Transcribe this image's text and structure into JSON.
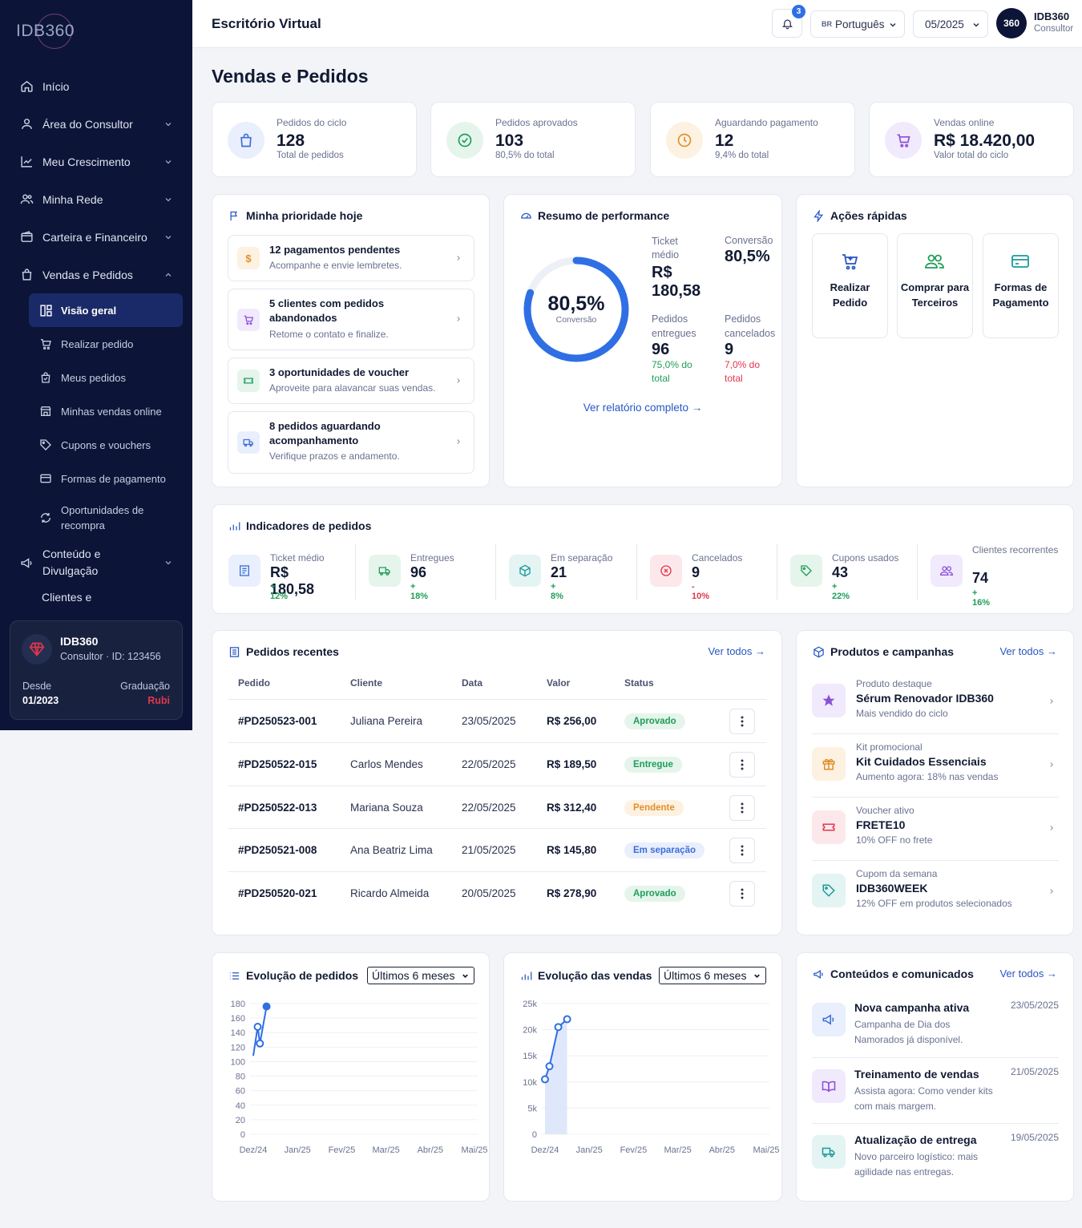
{
  "brand": {
    "logo": "IDB360"
  },
  "sidebar": {
    "items": [
      {
        "label": "Início"
      },
      {
        "label": "Área do Consultor"
      },
      {
        "label": "Meu Crescimento"
      },
      {
        "label": "Minha Rede"
      },
      {
        "label": "Carteira e Financeiro"
      },
      {
        "label": "Vendas e Pedidos"
      }
    ],
    "sub": [
      {
        "label": "Visão geral"
      },
      {
        "label": "Realizar pedido"
      },
      {
        "label": "Meus pedidos"
      },
      {
        "label": "Minhas vendas online"
      },
      {
        "label": "Cupons e vouchers"
      },
      {
        "label": "Formas de pagamento"
      },
      {
        "label": "Oportunidades de recompra"
      }
    ],
    "content_item": "Conteúdo e Divulgação",
    "next_item": "Clientes e",
    "user": {
      "name": "IDB360",
      "role": "Consultor · ID: 123456",
      "since_label": "Desde",
      "since_value": "01/2023",
      "grade_label": "Graduação",
      "grade_value": "Rubi"
    }
  },
  "topbar": {
    "title": "Escritório Virtual",
    "notifications": "3",
    "language": "Português",
    "language_flag": "BR",
    "period": "05/2025",
    "user": {
      "avatar": "360",
      "name": "IDB360",
      "role": "Consultor"
    }
  },
  "page_title": "Vendas e Pedidos",
  "kpis": [
    {
      "label": "Pedidos do ciclo",
      "value": "128",
      "sub": "Total de pedidos",
      "icon": "bag-icon",
      "color": "#3d6fd8"
    },
    {
      "label": "Pedidos aprovados",
      "value": "103",
      "sub": "80,5% do total",
      "icon": "check-circle-icon",
      "color": "#1f9d5a"
    },
    {
      "label": "Aguardando pagamento",
      "value": "12",
      "sub": "9,4% do total",
      "icon": "clock-icon",
      "color": "#e0902a"
    },
    {
      "label": "Vendas online",
      "value": "R$ 18.420,00",
      "sub": "Valor total do ciclo",
      "icon": "cart-icon",
      "color": "#8a4fd8"
    }
  ],
  "priority": {
    "title": "Minha prioridade hoje",
    "items": [
      {
        "title": "12 pagamentos pendentes",
        "desc": "Acompanhe e envie lembretes.",
        "glyph": "$"
      },
      {
        "title": "5 clientes com pedidos abandonados",
        "desc": "Retome o contato e finalize."
      },
      {
        "title": "3 oportunidades de voucher",
        "desc": "Aproveite para alavancar suas vendas."
      },
      {
        "title": "8 pedidos aguardando acompanhamento",
        "desc": "Verifique prazos e andamento."
      }
    ]
  },
  "performance": {
    "title": "Resumo de performance",
    "ring_value": "80,5%",
    "ring_label": "Conversão",
    "ring_fraction": 0.805,
    "ticket_label": "Ticket médio",
    "ticket_value": "R$ 180,58",
    "conv_label": "Conversão",
    "conv_value": "80,5%",
    "delivered_label": "Pedidos entregues",
    "delivered_value": "96",
    "delivered_sub": "75,0% do total",
    "cancel_label": "Pedidos cancelados",
    "cancel_value": "9",
    "cancel_sub": "7,0% do total",
    "link": "Ver relatório completo →"
  },
  "quick": {
    "title": "Ações rápidas",
    "items": [
      {
        "label": "Realizar Pedido"
      },
      {
        "label": "Comprar para Terceiros"
      },
      {
        "label": "Formas de Pagamento"
      }
    ]
  },
  "indicators": {
    "title": "Indicadores de pedidos",
    "items": [
      {
        "label": "Ticket médio",
        "value": "R$ 180,58",
        "change": "+ 12%"
      },
      {
        "label": "Entregues",
        "value": "96",
        "change": "+ 18%"
      },
      {
        "label": "Em separação",
        "value": "21",
        "change": "+ 8%"
      },
      {
        "label": "Cancelados",
        "value": "9",
        "change": "- 10%"
      },
      {
        "label": "Cupons usados",
        "value": "43",
        "change": "+ 22%"
      },
      {
        "label": "Clientes recorrentes",
        "value": "74",
        "change": "+ 16%"
      }
    ]
  },
  "orders": {
    "title": "Pedidos recentes",
    "link": "Ver todos →",
    "columns": [
      "Pedido",
      "Cliente",
      "Data",
      "Valor",
      "Status"
    ],
    "rows": [
      {
        "id": "#PD250523-001",
        "client": "Juliana Pereira",
        "date": "23/05/2025",
        "value": "R$ 256,00",
        "status": "Aprovado"
      },
      {
        "id": "#PD250522-015",
        "client": "Carlos Mendes",
        "date": "22/05/2025",
        "value": "R$ 189,50",
        "status": "Entregue"
      },
      {
        "id": "#PD250522-013",
        "client": "Mariana Souza",
        "date": "22/05/2025",
        "value": "R$ 312,40",
        "status": "Pendente"
      },
      {
        "id": "#PD250521-008",
        "client": "Ana Beatriz Lima",
        "date": "21/05/2025",
        "value": "R$ 145,80",
        "status": "Em separação"
      },
      {
        "id": "#PD250520-021",
        "client": "Ricardo Almeida",
        "date": "20/05/2025",
        "value": "R$ 278,90",
        "status": "Aprovado"
      }
    ]
  },
  "products": {
    "title": "Produtos e campanhas",
    "link": "Ver todos →",
    "items": [
      {
        "kicker": "Produto destaque",
        "name": "Sérum Renovador IDB360",
        "desc": "Mais vendido do ciclo"
      },
      {
        "kicker": "Kit promocional",
        "name": "Kit Cuidados Essenciais",
        "desc": "Aumento agora: 18% nas vendas"
      },
      {
        "kicker": "Voucher ativo",
        "name": "FRETE10",
        "desc": "10% OFF no frete"
      },
      {
        "kicker": "Cupom da semana",
        "name": "IDB360WEEK",
        "desc": "12% OFF em produtos selecionados"
      }
    ]
  },
  "orders_chart": {
    "title": "Evolução de pedidos",
    "range": "Últimos 6 meses"
  },
  "sales_chart": {
    "title": "Evolução das vendas",
    "range": "Últimos 6 meses"
  },
  "chart_data": [
    {
      "type": "line",
      "x": [
        "Dez/24",
        "Jan/25",
        "Fev/25",
        "Mar/25",
        "Abr/25",
        "Mai/25"
      ],
      "yticks": [
        "0",
        "20",
        "40",
        "60",
        "80",
        "100",
        "120",
        "140",
        "160",
        "180"
      ],
      "ylim": [
        0,
        180
      ],
      "points": [
        [
          0.0,
          108
        ],
        [
          0.1,
          148
        ],
        [
          0.15,
          125
        ],
        [
          0.3,
          176
        ]
      ]
    },
    {
      "type": "area",
      "x": [
        "Dez/24",
        "Jan/25",
        "Fev/25",
        "Mar/25",
        "Abr/25",
        "Mai/25"
      ],
      "yticks": [
        "0",
        "5k",
        "10k",
        "15k",
        "20k",
        "25k"
      ],
      "ylim": [
        0,
        25000
      ],
      "points": [
        [
          0.0,
          10500
        ],
        [
          0.1,
          13000
        ],
        [
          0.3,
          20500
        ],
        [
          0.5,
          22000
        ]
      ]
    }
  ],
  "comms": {
    "title": "Conteúdos e comunicados",
    "link": "Ver todos →",
    "items": [
      {
        "title": "Nova campanha ativa",
        "desc": "Campanha de Dia dos Namorados já disponível.",
        "date": "23/05/2025"
      },
      {
        "title": "Treinamento de vendas",
        "desc": "Assista agora: Como vender kits com mais margem.",
        "date": "21/05/2025"
      },
      {
        "title": "Atualização de entrega",
        "desc": "Novo parceiro logístico: mais agilidade nas entregas.",
        "date": "19/05/2025"
      }
    ]
  }
}
